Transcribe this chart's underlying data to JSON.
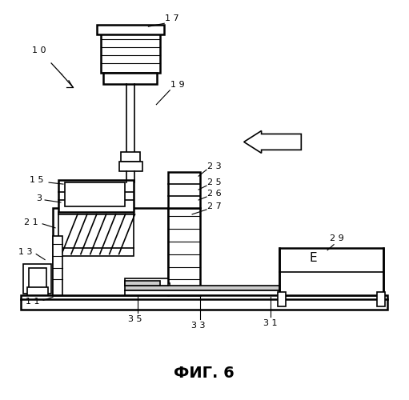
{
  "title": "ФИГ. 6",
  "bg_color": "#ffffff",
  "line_color": "#000000"
}
